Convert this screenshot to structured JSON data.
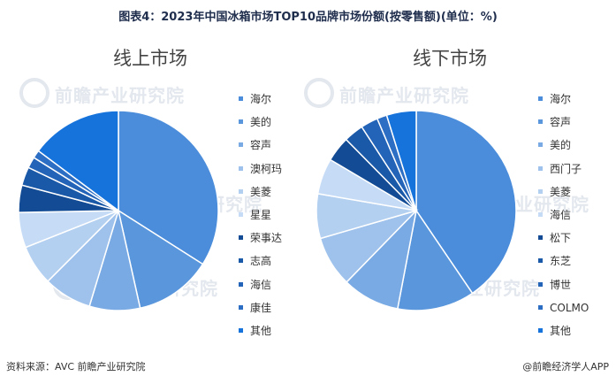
{
  "title": "图表4：2023年中国冰箱市场TOP10品牌市场份额(按零售额)(单位：%)",
  "source": "资料来源：AVC 前瞻产业研究院",
  "brand": "@前瞻经济学人APP",
  "watermark": "前瞻产业研究院",
  "chart_data": [
    {
      "type": "pie",
      "title": "线上市场",
      "legend_position": "right",
      "categories": [
        "海尔",
        "美的",
        "容声",
        "澳柯玛",
        "美菱",
        "星星",
        "荣事达",
        "志高",
        "海信",
        "康佳",
        "其他"
      ],
      "values": [
        34.0,
        12.5,
        8.2,
        7.8,
        6.5,
        5.7,
        4.4,
        3.0,
        1.8,
        1.3,
        14.8
      ],
      "colors": [
        "#4b8ddb",
        "#5a96dc",
        "#7aaae4",
        "#9fc2ec",
        "#b4d0f1",
        "#c6dcf6",
        "#134c94",
        "#1a58a8",
        "#2364b8",
        "#2c6ec4",
        "#1673dc"
      ]
    },
    {
      "type": "pie",
      "title": "线下市场",
      "legend_position": "right",
      "categories": [
        "海尔",
        "容声",
        "美的",
        "西门子",
        "美菱",
        "海信",
        "松下",
        "东芝",
        "博世",
        "COLMO",
        "其他"
      ],
      "values": [
        40.5,
        12.5,
        9.3,
        8.2,
        7.2,
        5.8,
        4.1,
        3.2,
        2.8,
        1.6,
        4.8
      ],
      "colors": [
        "#4b8ddb",
        "#5a96dc",
        "#7aaae4",
        "#9fc2ec",
        "#b4d0f1",
        "#c6dcf6",
        "#134c94",
        "#1a58a8",
        "#2364b8",
        "#2c6ec4",
        "#1673dc"
      ]
    }
  ]
}
